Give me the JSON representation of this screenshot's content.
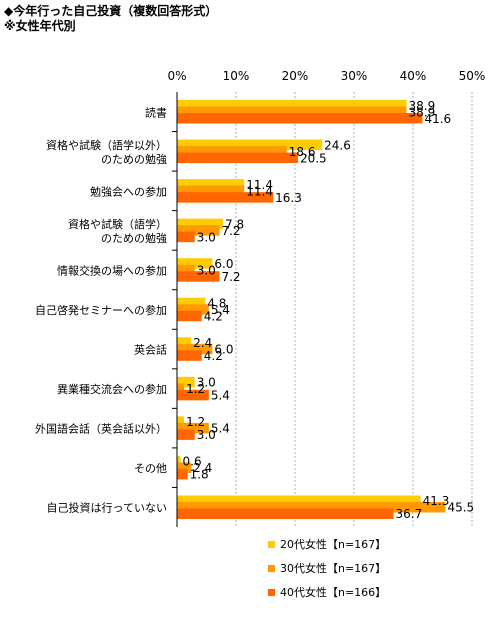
{
  "chart_data": {
    "type": "bar",
    "orientation": "horizontal",
    "title": "◆今年行った自己投資（複数回答形式）",
    "subtitle": "※女性年代別",
    "xlim": [
      0,
      50
    ],
    "x_ticks": [
      "0%",
      "10%",
      "20%",
      "30%",
      "40%",
      "50%"
    ],
    "grid": true,
    "legend_position": "bottom-right",
    "categories": [
      "読書",
      "資格や試験（語学以外）\nのための勉強",
      "勉強会への参加",
      "資格や試験（語学）\nのための勉強",
      "情報交換の場への参加",
      "自己啓発セミナーへの参加",
      "英会話",
      "異業種交流会への参加",
      "外国語会話（英会話以外）",
      "その他",
      "自己投資は行っていない"
    ],
    "series": [
      {
        "name": "20代女性【n=167】",
        "color": "#FFCC00",
        "values": [
          38.9,
          24.6,
          11.4,
          7.8,
          6.0,
          4.8,
          2.4,
          3.0,
          1.2,
          0.6,
          41.3
        ]
      },
      {
        "name": "30代女性【n=167】",
        "color": "#FF9900",
        "values": [
          38.9,
          18.6,
          11.4,
          7.2,
          3.0,
          5.4,
          6.0,
          1.2,
          5.4,
          2.4,
          45.5
        ]
      },
      {
        "name": "40代女性【n=166】",
        "color": "#FF6600",
        "values": [
          41.6,
          20.5,
          16.3,
          3.0,
          7.2,
          4.2,
          4.2,
          5.4,
          3.0,
          1.8,
          36.7
        ]
      }
    ]
  }
}
